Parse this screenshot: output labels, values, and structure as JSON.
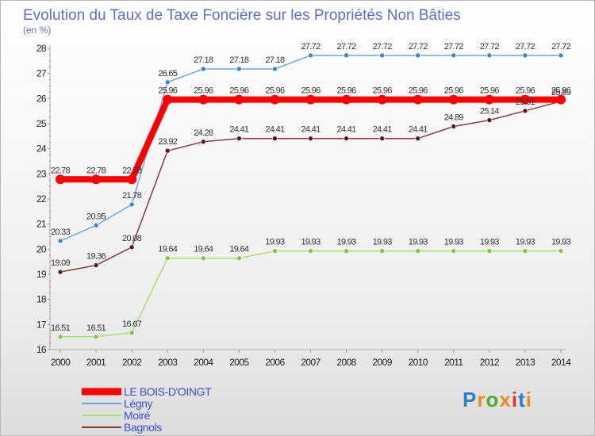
{
  "chart_data": {
    "type": "line",
    "title": "Evolution du Taux de Taxe Foncière sur les Propriétés Non Bâties",
    "ylabel": "(en %)",
    "xlabel": "",
    "x": [
      "2000",
      "2001",
      "2002",
      "2003",
      "2004",
      "2005",
      "2006",
      "2007",
      "2008",
      "2009",
      "2010",
      "2011",
      "2012",
      "2013",
      "2014"
    ],
    "ylim": [
      16,
      28
    ],
    "yticks": [
      16,
      17,
      18,
      19,
      20,
      21,
      22,
      23,
      24,
      25,
      26,
      27,
      28
    ],
    "grid": false,
    "legend_position": "bottom-left",
    "series": [
      {
        "name": "LE BOIS-D'OINGT",
        "color": "#ff0000",
        "emphasis": true,
        "values": [
          22.78,
          22.78,
          22.78,
          25.96,
          25.96,
          25.96,
          25.96,
          25.96,
          25.96,
          25.96,
          25.96,
          25.96,
          25.96,
          25.96,
          25.96
        ],
        "labels": [
          "22.78",
          "22.78",
          "22.78",
          "25.96",
          "25.96",
          "25.96",
          "25.96",
          "25.96",
          "25.96",
          "25.96",
          "25.96",
          "25.96",
          "25.96",
          "25.96",
          "25.96"
        ]
      },
      {
        "name": "Légny",
        "color": "#6aa8d8",
        "marker": "#3d85c6",
        "values": [
          20.33,
          20.95,
          21.78,
          26.65,
          27.18,
          27.18,
          27.18,
          27.72,
          27.72,
          27.72,
          27.72,
          27.72,
          27.72,
          27.72,
          27.72
        ],
        "labels": [
          "20.33",
          "20.95",
          "21.78",
          "26.65",
          "27.18",
          "27.18",
          "27.18",
          "27.72",
          "27.72",
          "27.72",
          "27.72",
          "27.72",
          "27.72",
          "27.72",
          "27.72"
        ]
      },
      {
        "name": "Moiré",
        "color": "#a8e070",
        "marker": "#7dc845",
        "values": [
          16.51,
          16.51,
          16.67,
          19.64,
          19.64,
          19.64,
          19.93,
          19.93,
          19.93,
          19.93,
          19.93,
          19.93,
          19.93,
          19.93,
          19.93
        ],
        "labels": [
          "16.51",
          "16.51",
          "16.67",
          "19.64",
          "19.64",
          "19.64",
          "19.93",
          "19.93",
          "19.93",
          "19.93",
          "19.93",
          "19.93",
          "19.93",
          "19.93",
          "19.93"
        ]
      },
      {
        "name": "Bagnols",
        "color": "#8a3a3a",
        "marker": "#5a1a1a",
        "values": [
          19.09,
          19.36,
          20.08,
          23.92,
          24.28,
          24.41,
          24.41,
          24.41,
          24.41,
          24.41,
          24.41,
          24.89,
          25.14,
          25.51,
          25.89
        ],
        "labels": [
          "19.09",
          "19.36",
          "20.08",
          "23.92",
          "24.28",
          "24.41",
          "24.41",
          "24.41",
          "24.41",
          "24.41",
          "24.41",
          "24.89",
          "25.14",
          "25.51",
          "25.89"
        ]
      }
    ]
  },
  "branding": {
    "letters": [
      "P",
      "r",
      "o",
      "x",
      "i",
      "t",
      "i"
    ],
    "colors": [
      "#2a7fd0",
      "#f08a1c",
      "#43b02a",
      "#f08a1c",
      "#e83030",
      "#2a7fd0",
      "#f08a1c"
    ]
  }
}
